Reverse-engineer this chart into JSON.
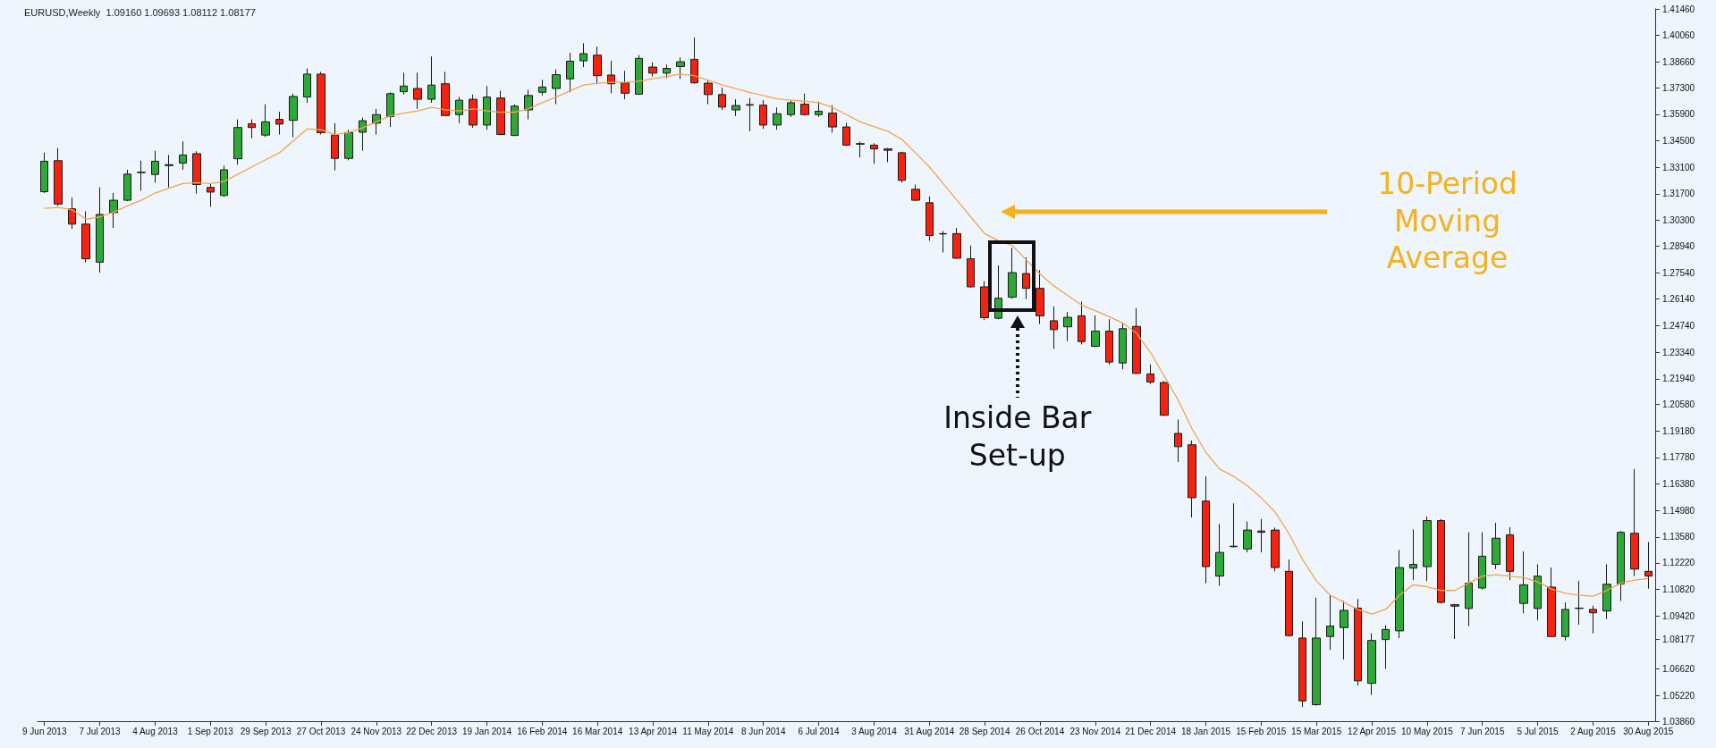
{
  "chart_data": {
    "type": "candlestick",
    "title": "EURUSD,Weekly  1.09160 1.09693 1.08112 1.08177",
    "categories": [
      "9 Jun 2013",
      null,
      null,
      null,
      "7 Jul 2013",
      null,
      null,
      null,
      "4 Aug 2013",
      null,
      null,
      null,
      "1 Sep 2013",
      null,
      null,
      null,
      "29 Sep 2013",
      null,
      null,
      null,
      "27 Oct 2013",
      null,
      null,
      null,
      "24 Nov 2013",
      null,
      null,
      null,
      "22 Dec 2013",
      null,
      null,
      null,
      "19 Jan 2014",
      null,
      null,
      null,
      "16 Feb 2014",
      null,
      null,
      null,
      "16 Mar 2014",
      null,
      null,
      null,
      "13 Apr 2014",
      null,
      null,
      null,
      "11 May 2014",
      null,
      null,
      null,
      "8 Jun 2014",
      null,
      null,
      null,
      "6 Jul 2014",
      null,
      null,
      null,
      "3 Aug 2014",
      null,
      null,
      null,
      "31 Aug 2014",
      null,
      null,
      null,
      "28 Sep 2014",
      null,
      null,
      null,
      "26 Oct 2014",
      null,
      null,
      null,
      "23 Nov 2014",
      null,
      null,
      null,
      "21 Dec 2014",
      null,
      null,
      null,
      "18 Jan 2015",
      null,
      null,
      null,
      "15 Feb 2015",
      null,
      null,
      null,
      "15 Mar 2015",
      null,
      null,
      null,
      "12 Apr 2015",
      null,
      null,
      null,
      "10 May 2015",
      null,
      null,
      null,
      "7 Jun 2015",
      null,
      null,
      null,
      "5 Jul 2015",
      null,
      null,
      null,
      "2 Aug 2015",
      null,
      null,
      null,
      "30 Aug 2015"
    ],
    "ylim": [
      1.0386,
      1.4146
    ],
    "yticks": [
      {
        "value": 1.0386,
        "label": "1.03860"
      },
      {
        "value": 1.0522,
        "label": "1.05220"
      },
      {
        "value": 1.0662,
        "label": "1.06620"
      },
      {
        "value": 1.08177,
        "label": "1.08177"
      },
      {
        "value": 1.0942,
        "label": "1.09420"
      },
      {
        "value": 1.1082,
        "label": "1.10820"
      },
      {
        "value": 1.1222,
        "label": "1.12220"
      },
      {
        "value": 1.1358,
        "label": "1.13580"
      },
      {
        "value": 1.1498,
        "label": "1.14980"
      },
      {
        "value": 1.1638,
        "label": "1.16380"
      },
      {
        "value": 1.1778,
        "label": "1.17780"
      },
      {
        "value": 1.1918,
        "label": "1.19180"
      },
      {
        "value": 1.2058,
        "label": "1.20580"
      },
      {
        "value": 1.2194,
        "label": "1.21940"
      },
      {
        "value": 1.2334,
        "label": "1.23340"
      },
      {
        "value": 1.2474,
        "label": "1.24740"
      },
      {
        "value": 1.2614,
        "label": "1.26140"
      },
      {
        "value": 1.2754,
        "label": "1.27540"
      },
      {
        "value": 1.2894,
        "label": "1.28940"
      },
      {
        "value": 1.303,
        "label": "1.30300"
      },
      {
        "value": 1.317,
        "label": "1.31700"
      },
      {
        "value": 1.331,
        "label": "1.33100"
      },
      {
        "value": 1.345,
        "label": "1.34500"
      },
      {
        "value": 1.359,
        "label": "1.35900"
      },
      {
        "value": 1.373,
        "label": "1.37300"
      },
      {
        "value": 1.3866,
        "label": "1.38660"
      },
      {
        "value": 1.4006,
        "label": "1.40060"
      },
      {
        "value": 1.4146,
        "label": "1.41460"
      }
    ],
    "annotations": [
      "10-Period Moving Average",
      "Inside Bar Set-up"
    ],
    "series": [
      {
        "ohlc": [
          [
            1.3181,
            1.3387,
            1.3174,
            1.3342
          ],
          [
            1.3345,
            1.3412,
            1.3106,
            1.3116
          ],
          [
            1.3091,
            1.3151,
            1.2985,
            1.301
          ],
          [
            1.301,
            1.3078,
            1.2809,
            1.2827
          ],
          [
            1.2809,
            1.3204,
            1.2754,
            1.3061
          ],
          [
            1.3071,
            1.3174,
            1.299,
            1.3136
          ],
          [
            1.3136,
            1.3297,
            1.3131,
            1.3274
          ],
          [
            1.3282,
            1.3345,
            1.3186,
            1.3284
          ],
          [
            1.3272,
            1.3397,
            1.3229,
            1.3342
          ],
          [
            1.3319,
            1.3375,
            1.3204,
            1.3324
          ],
          [
            1.3332,
            1.3447,
            1.3297,
            1.3375
          ],
          [
            1.3382,
            1.3395,
            1.3171,
            1.3219
          ],
          [
            1.3204,
            1.3226,
            1.3101,
            1.3179
          ],
          [
            1.3161,
            1.3319,
            1.3154,
            1.3297
          ],
          [
            1.3355,
            1.3563,
            1.3324,
            1.352
          ],
          [
            1.354,
            1.3563,
            1.3463,
            1.352
          ],
          [
            1.348,
            1.3643,
            1.347,
            1.355
          ],
          [
            1.3563,
            1.3603,
            1.3483,
            1.3538
          ],
          [
            1.3558,
            1.3699,
            1.3468,
            1.3684
          ],
          [
            1.3681,
            1.3832,
            1.3651,
            1.3802
          ],
          [
            1.3802,
            1.3814,
            1.3483,
            1.3493
          ],
          [
            1.348,
            1.3543,
            1.3294,
            1.3357
          ],
          [
            1.3357,
            1.3508,
            1.3347,
            1.3493
          ],
          [
            1.3495,
            1.3573,
            1.3397,
            1.3556
          ],
          [
            1.3543,
            1.3618,
            1.3483,
            1.3588
          ],
          [
            1.3578,
            1.3706,
            1.3523,
            1.3699
          ],
          [
            1.3709,
            1.3809,
            1.3694,
            1.3739
          ],
          [
            1.3726,
            1.3809,
            1.3618,
            1.3669
          ],
          [
            1.3669,
            1.3895,
            1.3651,
            1.3744
          ],
          [
            1.3751,
            1.3814,
            1.3583,
            1.3583
          ],
          [
            1.3588,
            1.3681,
            1.3543,
            1.3664
          ],
          [
            1.3669,
            1.3694,
            1.3518,
            1.3533
          ],
          [
            1.3533,
            1.3739,
            1.3508,
            1.3681
          ],
          [
            1.3676,
            1.3714,
            1.348,
            1.3483
          ],
          [
            1.3478,
            1.3643,
            1.3475,
            1.3633
          ],
          [
            1.3613,
            1.3719,
            1.3563,
            1.3689
          ],
          [
            1.3706,
            1.3772,
            1.3689,
            1.3734
          ],
          [
            1.3726,
            1.3827,
            1.3643,
            1.3799
          ],
          [
            1.3777,
            1.3915,
            1.3706,
            1.387
          ],
          [
            1.3872,
            1.3965,
            1.3839,
            1.391
          ],
          [
            1.3902,
            1.3947,
            1.3749,
            1.3794
          ],
          [
            1.3797,
            1.3872,
            1.3701,
            1.3751
          ],
          [
            1.3756,
            1.3819,
            1.3669,
            1.3701
          ],
          [
            1.3696,
            1.3902,
            1.3694,
            1.3885
          ],
          [
            1.3839,
            1.3864,
            1.3789,
            1.3807
          ],
          [
            1.3807,
            1.3852,
            1.3781,
            1.3832
          ],
          [
            1.3842,
            1.389,
            1.3777,
            1.3867
          ],
          [
            1.388,
            1.3995,
            1.3751,
            1.3756
          ],
          [
            1.3754,
            1.3769,
            1.3643,
            1.3694
          ],
          [
            1.3694,
            1.3731,
            1.3613,
            1.3628
          ],
          [
            1.3613,
            1.3669,
            1.3581,
            1.3636
          ],
          [
            1.3638,
            1.3676,
            1.35,
            1.3641
          ],
          [
            1.3638,
            1.3664,
            1.3513,
            1.3533
          ],
          [
            1.3533,
            1.3626,
            1.3508,
            1.3593
          ],
          [
            1.3588,
            1.3664,
            1.3576,
            1.3651
          ],
          [
            1.3643,
            1.3699,
            1.3583,
            1.3588
          ],
          [
            1.3588,
            1.3656,
            1.3576,
            1.3606
          ],
          [
            1.3596,
            1.3638,
            1.3493,
            1.3523
          ],
          [
            1.3523,
            1.3545,
            1.3425,
            1.3427
          ],
          [
            1.3432,
            1.3445,
            1.3362,
            1.3435
          ],
          [
            1.3427,
            1.3437,
            1.3329,
            1.3407
          ],
          [
            1.3407,
            1.3412,
            1.3337,
            1.34
          ],
          [
            1.3387,
            1.3392,
            1.3229,
            1.3241
          ],
          [
            1.3194,
            1.3219,
            1.3131,
            1.3136
          ],
          [
            1.3123,
            1.3156,
            1.2922,
            1.295
          ],
          [
            1.296,
            1.2973,
            1.286,
            1.2958
          ],
          [
            1.296,
            1.299,
            1.2827,
            1.283
          ],
          [
            1.2827,
            1.2897,
            1.2676,
            1.2679
          ],
          [
            1.2679,
            1.2709,
            1.2503,
            1.2516
          ],
          [
            1.2513,
            1.2792,
            1.2508,
            1.2619
          ],
          [
            1.2624,
            1.2885,
            1.2616,
            1.2754
          ],
          [
            1.2749,
            1.2835,
            1.2614,
            1.2671
          ],
          [
            1.2671,
            1.2767,
            1.2483,
            1.2526
          ],
          [
            1.25,
            1.2576,
            1.2352,
            1.2453
          ],
          [
            1.2468,
            1.2546,
            1.2392,
            1.2518
          ],
          [
            1.2526,
            1.2601,
            1.2375,
            1.239
          ],
          [
            1.2365,
            1.2528,
            1.236,
            1.2445
          ],
          [
            1.2445,
            1.2508,
            1.2269,
            1.2282
          ],
          [
            1.2277,
            1.2488,
            1.2244,
            1.2458
          ],
          [
            1.247,
            1.2566,
            1.2219,
            1.2222
          ],
          [
            1.2219,
            1.2269,
            1.2166,
            1.2176
          ],
          [
            1.2174,
            1.2181,
            1.1998,
            1.2001
          ],
          [
            1.1905,
            1.1978,
            1.1754,
            1.1835
          ],
          [
            1.1845,
            1.1867,
            1.1461,
            1.1566
          ],
          [
            1.1548,
            1.1679,
            1.1114,
            1.1202
          ],
          [
            1.1152,
            1.1428,
            1.1101,
            1.1277
          ],
          [
            1.1307,
            1.1536,
            1.1302,
            1.131
          ],
          [
            1.1295,
            1.144,
            1.1277,
            1.1395
          ],
          [
            1.139,
            1.1453,
            1.1277,
            1.1383
          ],
          [
            1.1395,
            1.1408,
            1.1177,
            1.1197
          ],
          [
            1.1177,
            1.1239,
            1.0833,
            1.0838
          ],
          [
            1.0825,
            1.0913,
            1.0461,
            1.0493
          ],
          [
            1.0473,
            1.1038,
            1.0468,
            1.0825
          ],
          [
            1.0833,
            1.1051,
            1.0762,
            1.0888
          ],
          [
            1.088,
            1.1021,
            1.0712,
            1.0971
          ],
          [
            1.0983,
            1.1031,
            1.0574,
            1.0599
          ],
          [
            1.0586,
            1.085,
            1.0524,
            1.0812
          ],
          [
            1.0817,
            1.0893,
            1.0662,
            1.087
          ],
          [
            1.0863,
            1.129,
            1.0825,
            1.1197
          ],
          [
            1.1194,
            1.1398,
            1.1131,
            1.1214
          ],
          [
            1.1202,
            1.1466,
            1.1126,
            1.1445
          ],
          [
            1.1445,
            1.1453,
            1.1008,
            1.1013
          ],
          [
            1.1001,
            1.1006,
            1.082,
            1.0993
          ],
          [
            1.0981,
            1.1383,
            1.0888,
            1.1114
          ],
          [
            1.1089,
            1.1383,
            1.1081,
            1.1257
          ],
          [
            1.1214,
            1.1433,
            1.1189,
            1.1352
          ],
          [
            1.137,
            1.141,
            1.1131,
            1.1177
          ],
          [
            1.1008,
            1.1282,
            1.0956,
            1.1106
          ],
          [
            1.0981,
            1.1214,
            1.0918,
            1.1152
          ],
          [
            1.1094,
            1.1197,
            1.083,
            1.0833
          ],
          [
            1.0833,
            1.1013,
            1.0812,
            1.0976
          ],
          [
            1.0981,
            1.1126,
            1.0895,
            1.0983
          ],
          [
            1.0976,
            1.0996,
            1.085,
            1.0958
          ],
          [
            1.0968,
            1.1214,
            1.0925,
            1.1109
          ],
          [
            1.1111,
            1.139,
            1.1021,
            1.1383
          ],
          [
            1.1378,
            1.1717,
            1.1152,
            1.1189
          ],
          [
            1.1177,
            1.1332,
            1.1086,
            1.1152
          ]
        ],
        "colors": [
          "#2ea836",
          "#f5220f",
          "#f5220f",
          "#f5220f",
          "#2ea836",
          "#2ea836",
          "#2ea836",
          "#2ea836",
          "#2ea836",
          "#2ea836",
          "#2ea836",
          "#f5220f",
          "#f5220f",
          "#2ea836",
          "#2ea836",
          "#f5220f",
          "#2ea836",
          "#f5220f",
          "#2ea836",
          "#2ea836",
          "#f5220f",
          "#f5220f",
          "#2ea836",
          "#2ea836",
          "#2ea836",
          "#2ea836",
          "#2ea836",
          "#f5220f",
          "#2ea836",
          "#f5220f",
          "#2ea836",
          "#f5220f",
          "#2ea836",
          "#f5220f",
          "#2ea836",
          "#2ea836",
          "#2ea836",
          "#2ea836",
          "#2ea836",
          "#2ea836",
          "#f5220f",
          "#f5220f",
          "#f5220f",
          "#2ea836",
          "#f5220f",
          "#2ea836",
          "#2ea836",
          "#f5220f",
          "#f5220f",
          "#f5220f",
          "#2ea836",
          "#2ea836",
          "#f5220f",
          "#2ea836",
          "#2ea836",
          "#f5220f",
          "#2ea836",
          "#f5220f",
          "#f5220f",
          "#2ea836",
          "#f5220f",
          "#f5220f",
          "#f5220f",
          "#f5220f",
          "#f5220f",
          "#f5220f",
          "#f5220f",
          "#f5220f",
          "#f5220f",
          "#2ea836",
          "#2ea836",
          "#f5220f",
          "#f5220f",
          "#f5220f",
          "#2ea836",
          "#f5220f",
          "#2ea836",
          "#f5220f",
          "#2ea836",
          "#f5220f",
          "#f5220f",
          "#f5220f",
          "#f5220f",
          "#f5220f",
          "#f5220f",
          "#2ea836",
          "#2ea836",
          "#2ea836",
          "#f5220f",
          "#f5220f",
          "#f5220f",
          "#f5220f",
          "#2ea836",
          "#2ea836",
          "#2ea836",
          "#f5220f",
          "#2ea836",
          "#2ea836",
          "#2ea836",
          "#2ea836",
          "#2ea836",
          "#f5220f",
          "#f5220f",
          "#2ea836",
          "#2ea836",
          "#2ea836",
          "#f5220f",
          "#2ea836",
          "#2ea836",
          "#f5220f",
          "#2ea836",
          "#2ea836",
          "#f5220f",
          "#2ea836",
          "#2ea836",
          "#f5220f",
          "#f5220f"
        ]
      },
      {
        "type": "line",
        "color": "#f2a64a",
        "values": [
          1.3093,
          1.3098,
          1.3086,
          1.3036,
          1.3048,
          1.3073,
          1.3106,
          1.3136,
          1.3174,
          1.3199,
          1.3224,
          1.3229,
          1.3224,
          1.3236,
          1.3274,
          1.3312,
          1.335,
          1.3387,
          1.345,
          1.3513,
          1.3508,
          1.3483,
          1.3493,
          1.3518,
          1.355,
          1.3581,
          1.3596,
          1.3608,
          1.3626,
          1.3613,
          1.3608,
          1.3618,
          1.3608,
          1.3601,
          1.3601,
          1.3618,
          1.3651,
          1.3681,
          1.3714,
          1.3744,
          1.3754,
          1.3759,
          1.3759,
          1.3764,
          1.3777,
          1.3789,
          1.3802,
          1.3794,
          1.3769,
          1.3746,
          1.3726,
          1.3706,
          1.3689,
          1.3671,
          1.3664,
          1.3659,
          1.3651,
          1.3626,
          1.3588,
          1.355,
          1.3525,
          1.35,
          1.3458,
          1.3387,
          1.3312,
          1.3224,
          1.3136,
          1.3048,
          1.296,
          1.2922,
          1.2897,
          1.2822,
          1.2747,
          1.2684,
          1.2634,
          1.2583,
          1.2553,
          1.2521,
          1.2488,
          1.2433,
          1.2332,
          1.2207,
          1.2081,
          1.193,
          1.1805,
          1.1717,
          1.1679,
          1.1629,
          1.1566,
          1.1491,
          1.1378,
          1.1239,
          1.1126,
          1.1051,
          1.1013,
          1.0976,
          1.0951,
          1.0976,
          1.1051,
          1.1106,
          1.1096,
          1.1076,
          1.1076,
          1.1114,
          1.1152,
          1.1159,
          1.1152,
          1.1144,
          1.1121,
          1.1084,
          1.1061,
          1.1051,
          1.1046,
          1.1076,
          1.1114,
          1.1131,
          1.1139
        ]
      }
    ]
  }
}
